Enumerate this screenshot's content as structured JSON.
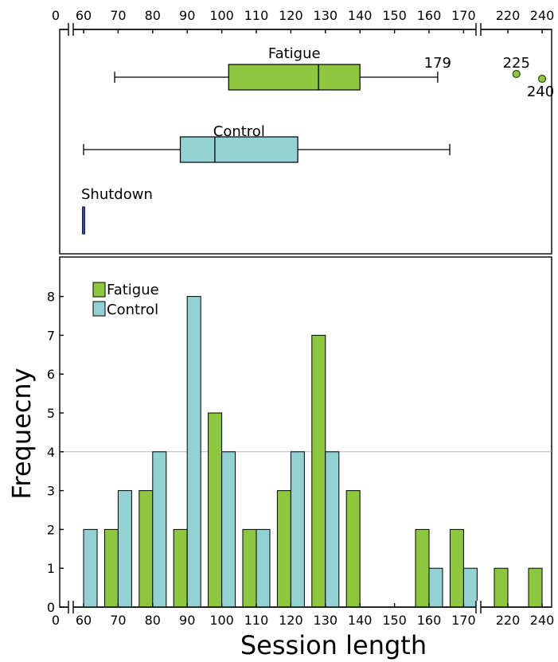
{
  "chart_data": [
    {
      "type": "box",
      "x_ticks": [
        "0",
        "60",
        "70",
        "80",
        "90",
        "100",
        "110",
        "120",
        "130",
        "140",
        "150",
        "160",
        "170",
        "220",
        "240"
      ],
      "x_axis_break": true,
      "series": [
        {
          "name": "Fatigue",
          "color": "#8dc63f",
          "min": 69,
          "q1": 102,
          "median": 128,
          "q3": 140,
          "max": 179,
          "outliers": [
            225,
            240
          ],
          "max_label": "179",
          "outlier_labels": [
            "225",
            "240"
          ]
        },
        {
          "name": "Control",
          "color": "#93d1d3",
          "min": 60,
          "q1": 88,
          "median": 98,
          "q3": 122,
          "max": 166,
          "outliers": []
        },
        {
          "name": "Shutdown",
          "color": "#3b4a8f",
          "min": 60,
          "q1": 60,
          "median": 60,
          "q3": 60,
          "max": 60,
          "outliers": []
        }
      ]
    },
    {
      "type": "bar",
      "xlabel": "Session length",
      "ylabel": "Frequecny",
      "x_ticks": [
        "0",
        "60",
        "70",
        "80",
        "90",
        "100",
        "110",
        "120",
        "130",
        "140",
        "150",
        "160",
        "170",
        "220",
        "240"
      ],
      "y_ticks": [
        "0",
        "1",
        "2",
        "3",
        "4",
        "5",
        "6",
        "7",
        "8"
      ],
      "ylim": [
        0,
        9
      ],
      "reference_line": 4,
      "legend": {
        "position": "top-left",
        "entries": [
          "Fatigue",
          "Control"
        ]
      },
      "categories": [
        "60",
        "70",
        "80",
        "90",
        "100",
        "110",
        "120",
        "130",
        "140",
        "160",
        "170",
        "220",
        "240"
      ],
      "series": [
        {
          "name": "Fatigue",
          "color": "#8dc63f",
          "values": [
            0,
            2,
            3,
            2,
            5,
            2,
            3,
            7,
            3,
            2,
            2,
            1,
            1
          ]
        },
        {
          "name": "Control",
          "color": "#93d1d3",
          "values": [
            2,
            3,
            4,
            8,
            4,
            2,
            4,
            4,
            0,
            1,
            1,
            0,
            0
          ]
        }
      ]
    }
  ]
}
